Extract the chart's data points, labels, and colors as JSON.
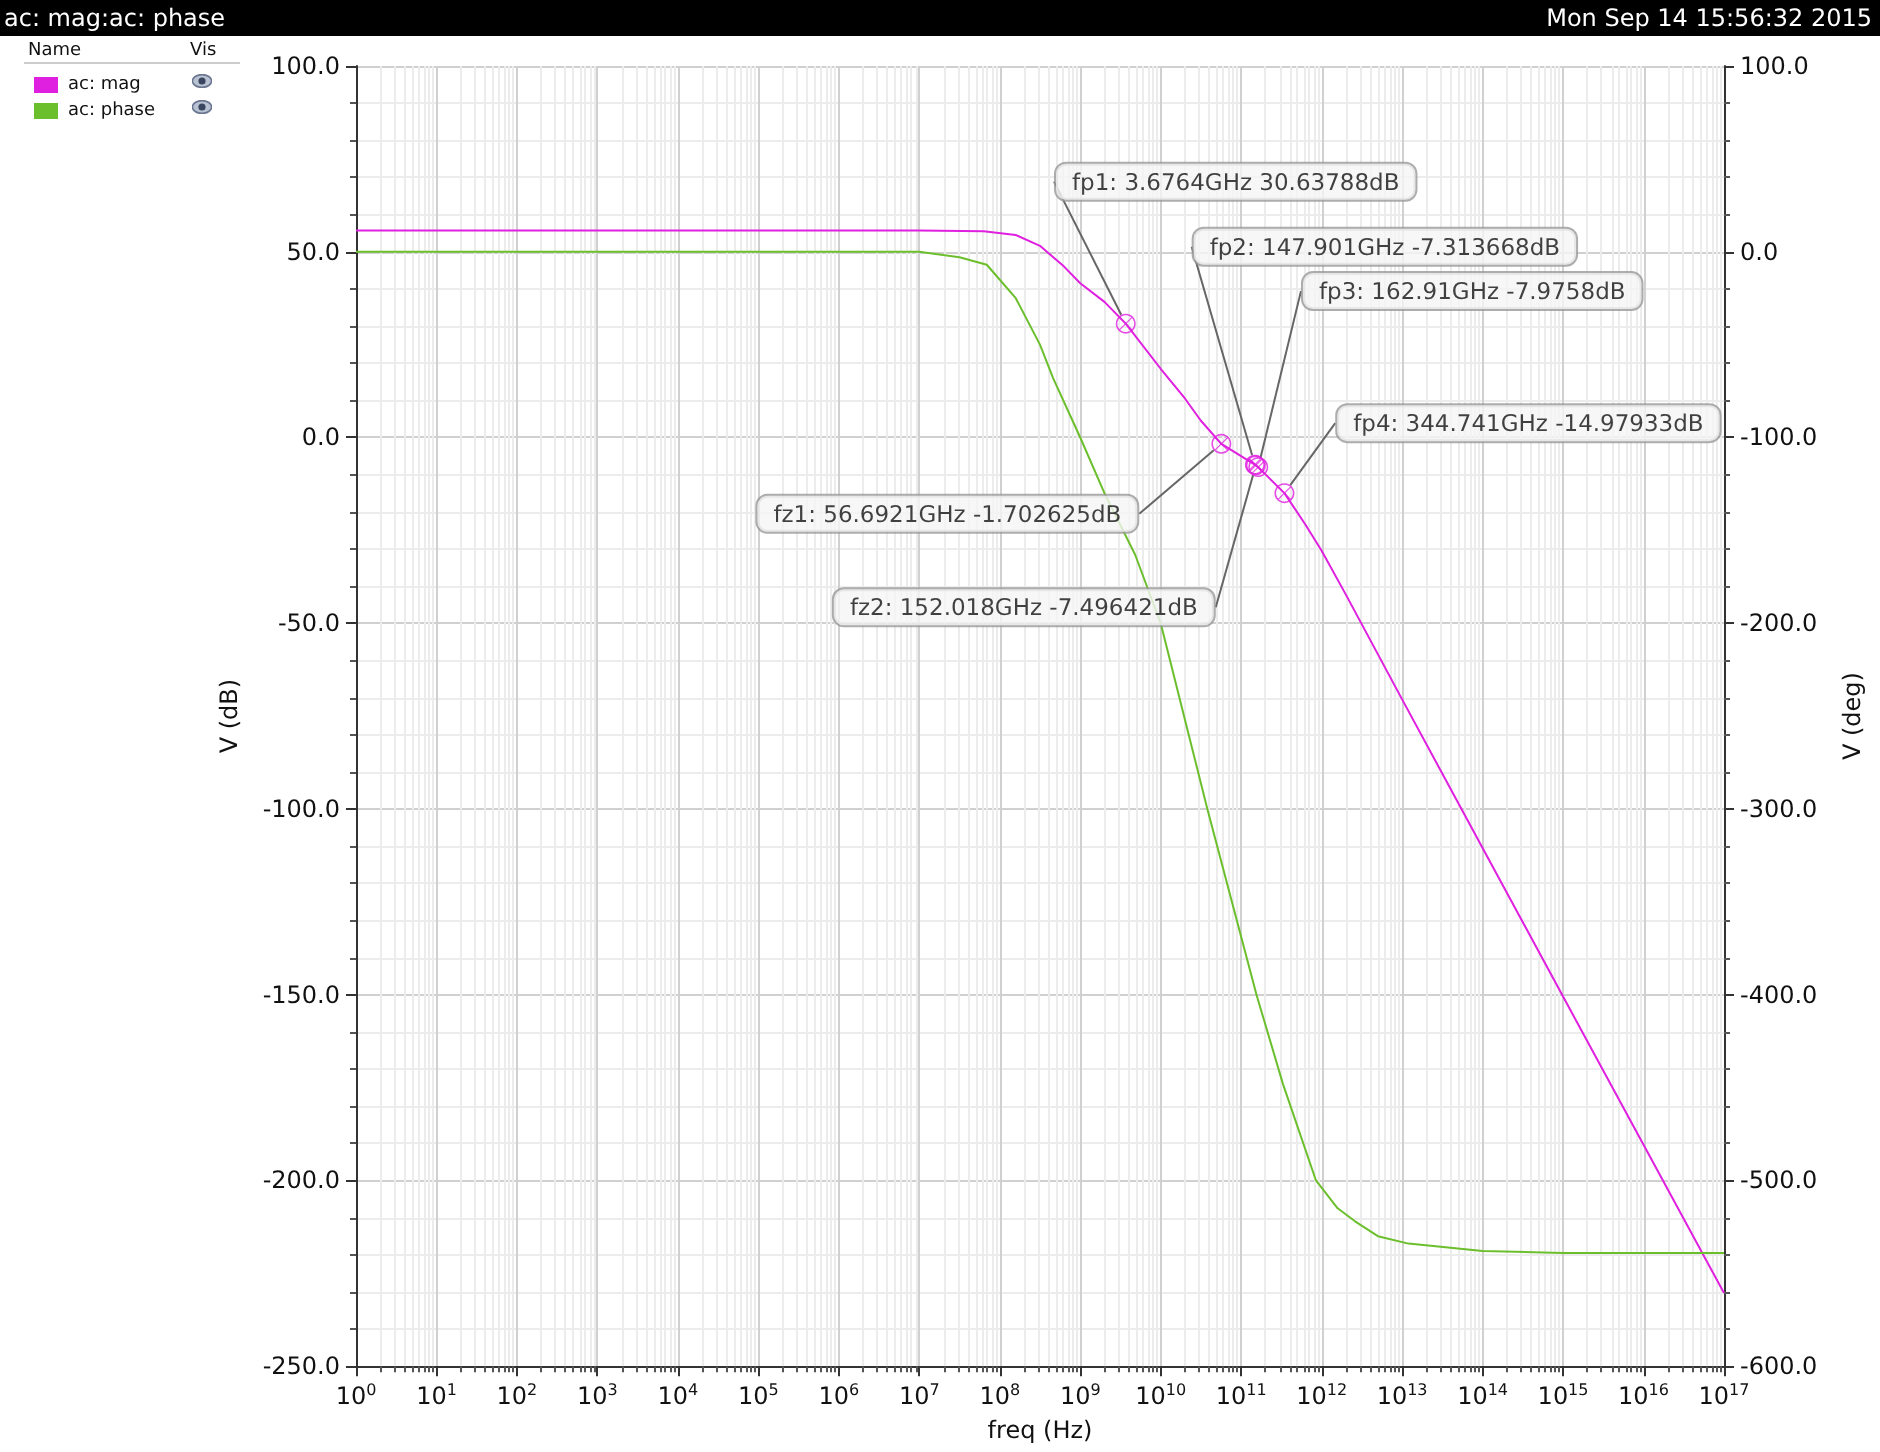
{
  "chart_data": {
    "type": "line",
    "title": "ac: mag:ac: phase",
    "xlabel": "freq (Hz)",
    "ylabel": "V (dB)",
    "y2label": "V (deg)",
    "log": "x",
    "grid": true,
    "legend": "top left",
    "xlim": [
      1,
      1e+17
    ],
    "xticks": [
      {
        "value": 1,
        "label": "10$^{0}$"
      },
      {
        "value": 10.0,
        "label": "10$^{1}$"
      },
      {
        "value": 100.0,
        "label": "10$^{2}$"
      },
      {
        "value": 1000.0,
        "label": "10$^{3}$"
      },
      {
        "value": 10000.0,
        "label": "10$^{4}$"
      },
      {
        "value": 100000.0,
        "label": "10$^{5}$"
      },
      {
        "value": 1000000.0,
        "label": "10$^{6}$"
      },
      {
        "value": 10000000.0,
        "label": "10$^{7}$"
      },
      {
        "value": 100000000.0,
        "label": "10$^{8}$"
      },
      {
        "value": 1000000000.0,
        "label": "10$^{9}$"
      },
      {
        "value": 10000000000.0,
        "label": "10$^{10}$"
      },
      {
        "value": 100000000000.0,
        "label": "10$^{11}$"
      },
      {
        "value": 1000000000000.0,
        "label": "10$^{12}$"
      },
      {
        "value": 10000000000000.0,
        "label": "10$^{13}$"
      },
      {
        "value": 100000000000000.0,
        "label": "10$^{14}$"
      },
      {
        "value": 1000000000000000.0,
        "label": "10$^{15}$"
      },
      {
        "value": 1e+16,
        "label": "10$^{16}$"
      },
      {
        "value": 1e+17,
        "label": "10$^{17}$"
      }
    ],
    "ylim": [
      -250,
      100
    ],
    "yticks": [
      {
        "value": -250,
        "label": "-250.0"
      },
      {
        "value": -200,
        "label": "-200.0"
      },
      {
        "value": -150,
        "label": "-150.0"
      },
      {
        "value": -100,
        "label": "-100.0"
      },
      {
        "value": -50,
        "label": "-50.0"
      },
      {
        "value": 0,
        "label": "0.0"
      },
      {
        "value": 50,
        "label": "50.0"
      },
      {
        "value": 100,
        "label": "100.0"
      }
    ],
    "y2lim": [
      -600,
      100
    ],
    "y2ticks": [
      {
        "value": -600,
        "label": "-600.0"
      },
      {
        "value": -500,
        "label": "-500.0"
      },
      {
        "value": -400,
        "label": "-400.0"
      },
      {
        "value": -300,
        "label": "-300.0"
      },
      {
        "value": -200,
        "label": "-200.0"
      },
      {
        "value": -100,
        "label": "-100.0"
      },
      {
        "value": 0,
        "label": "0.0"
      },
      {
        "value": 100,
        "label": "100.0"
      }
    ],
    "series": [
      {
        "name": "ac: mag",
        "color": "#e020e0",
        "x": [
          1,
          10000000.0,
          63000000.0,
          158000000.0,
          316000000.0,
          630000000.0,
          1000000000.0,
          2000000000.0,
          3676400000.0,
          10000000000.0,
          20000000000.0,
          31600000000.0,
          56692100000.0,
          147901000000.0,
          152018000000.0,
          162910000000.0,
          344741000000.0,
          630000000000.0,
          1000000000000.0,
          2000000000000.0,
          10000000000000.0,
          100000000000000.0,
          1000000000000000.0,
          1e+16,
          1e+17
        ],
        "values": [
          55.7,
          55.7,
          55.5,
          54.5,
          51.6,
          46,
          41.5,
          36.5,
          30.63788,
          18.5,
          10.5,
          4.5,
          -1.702625,
          -7.313668,
          -7.496421,
          -7.9758,
          -14.97933,
          -23.5,
          -30.5,
          -42.3,
          -70.5,
          -110.5,
          -150.5,
          -190.4,
          -230.3
        ]
      },
      {
        "name": "ac: phase",
        "color": "#6cbf2c",
        "axis": "y2",
        "x": [
          1,
          3160000.0,
          10000000.0,
          31600000.0,
          69000000.0,
          158000000.0,
          316000000.0,
          460000000.0,
          1000000000.0,
          2000000000.0,
          4800000000.0,
          10000000000.0,
          38000000000.0,
          155000000000.0,
          330000000000.0,
          850000000000.0,
          1580000000000.0,
          2600000000000.0,
          5000000000000.0,
          12000000000000.0,
          100000000000000.0,
          1000000000000000.0,
          1e+17
        ],
        "values": [
          0,
          0,
          0,
          -3,
          -7,
          -25,
          -50,
          -68,
          -100,
          -130,
          -163,
          -200,
          -300,
          -400,
          -448,
          -500,
          -515,
          -522,
          -530,
          -534,
          -538,
          -539,
          -539
        ]
      }
    ],
    "annotations": [
      "Mon Sep 14 15:56:32 2015",
      "Name",
      "Vis",
      {
        "text": "fp1: 3.6764GHz 30.63788dB",
        "x": 3676400000.0,
        "y": 30.63788
      },
      {
        "text": "fp2: 147.901GHz -7.313668dB",
        "x": 147901000000.0,
        "y": -7.313668
      },
      {
        "text": "fp3: 162.91GHz -7.9758dB",
        "x": 162910000000.0,
        "y": -7.9758
      },
      {
        "text": "fp4: 344.741GHz -14.97933dB",
        "x": 344741000000.0,
        "y": -14.97933
      },
      {
        "text": "fz1: 56.6921GHz -1.702625dB",
        "x": 56692100000.0,
        "y": -1.702625
      },
      {
        "text": "fz2: 152.018GHz -7.496421dB",
        "x": 152018000000.0,
        "y": -7.496421
      }
    ]
  }
}
